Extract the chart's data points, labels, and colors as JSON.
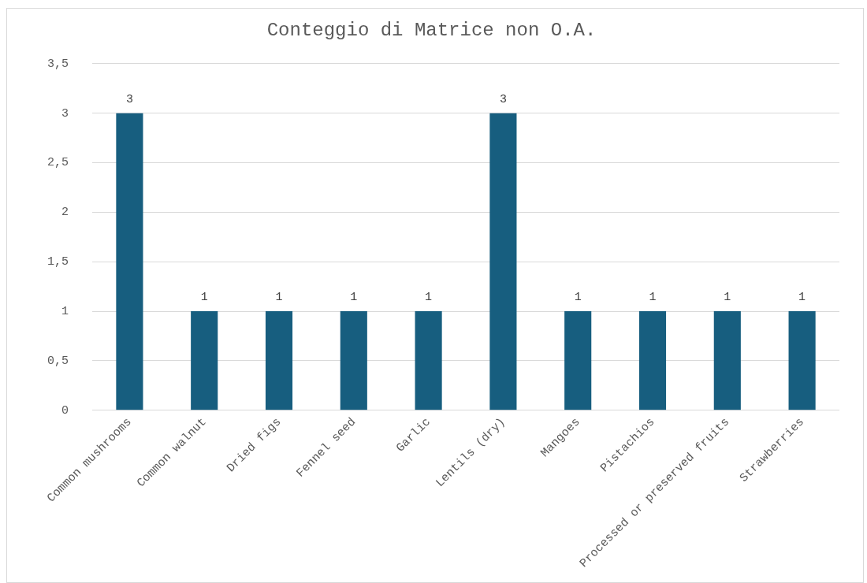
{
  "chart_data": {
    "type": "bar",
    "title": "Conteggio di Matrice non O.A.",
    "categories": [
      "Common mushrooms",
      "Common walnut",
      "Dried figs",
      "Fennel seed",
      "Garlic",
      "Lentils (dry)",
      "Mangoes",
      "Pistachios",
      "Processed or preserved fruits",
      "Strawberries"
    ],
    "values": [
      3,
      1,
      1,
      1,
      1,
      3,
      1,
      1,
      1,
      1
    ],
    "color": "#175e7f",
    "ylim": [
      0,
      3.5
    ],
    "yticks": [
      0,
      {
        "value": 0.5,
        "label": "0,5"
      },
      1,
      {
        "value": 1.5,
        "label": "1,5"
      },
      2,
      {
        "value": 2.5,
        "label": "2,5"
      },
      3,
      {
        "value": 3.5,
        "label": "3,5"
      }
    ],
    "grid": "y",
    "legend": false,
    "data_labels": true
  }
}
